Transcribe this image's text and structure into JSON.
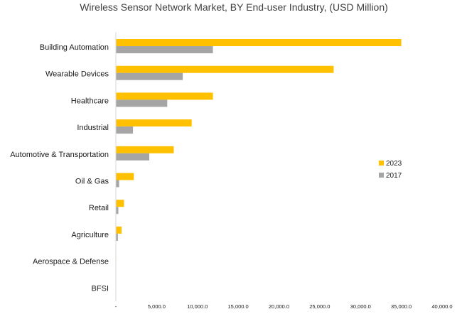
{
  "chart_data": {
    "type": "bar",
    "orientation": "horizontal",
    "title": "Wireless Sensor Network Market, BY End-user Industry, (USD Million)",
    "xlabel": "",
    "ylabel": "",
    "categories": [
      "Building Automation",
      "Wearable Devices",
      "Healthcare",
      "Industrial",
      "Automotive & Transportation",
      "Oil & Gas",
      "Retail",
      "Agriculture",
      "Aerospace & Defense",
      "BFSI"
    ],
    "series": [
      {
        "name": "2023",
        "color": "#ffc000",
        "values": [
          35000,
          26700,
          11900,
          9300,
          7100,
          2200,
          1000,
          700,
          50,
          30
        ]
      },
      {
        "name": "2017",
        "color": "#a5a5a5",
        "values": [
          11900,
          8200,
          6300,
          2100,
          4100,
          400,
          300,
          250,
          20,
          10
        ]
      }
    ],
    "xlim": [
      0,
      40000
    ],
    "xticks": [
      0,
      5000,
      10000,
      15000,
      20000,
      25000,
      30000,
      35000,
      40000
    ],
    "xtick_labels": [
      "-",
      "5,000.0",
      "10,000.0",
      "15,000.0",
      "20,000.0",
      "25,000.0",
      "30,000.0",
      "35,000.0",
      "40,000.0"
    ],
    "grid": false,
    "legend_position": "right"
  }
}
